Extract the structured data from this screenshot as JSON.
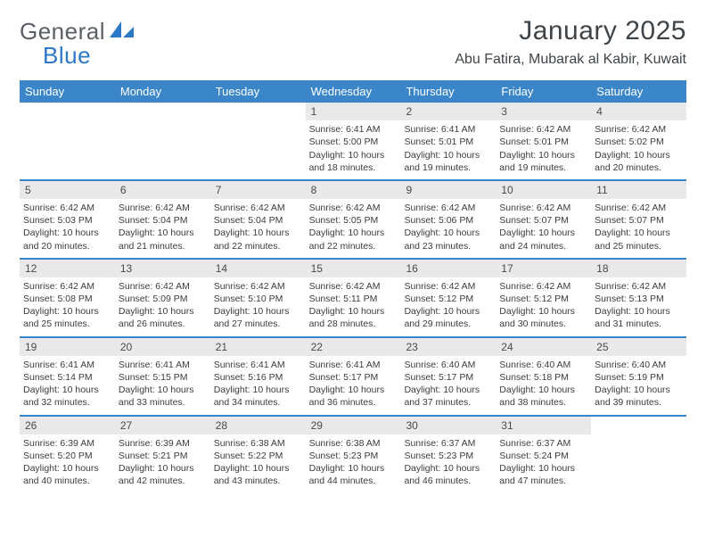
{
  "logo": {
    "word1": "General",
    "word2": "Blue",
    "word1_color": "#5b6066",
    "word2_color": "#2d78c6",
    "icon_color": "#2d78c6"
  },
  "title": "January 2025",
  "location": "Abu Fatira, Mubarak al Kabir, Kuwait",
  "colors": {
    "header_bg": "#3b86c8",
    "header_fg": "#ffffff",
    "daynum_bg": "#e9e9e9",
    "text": "#3c3c3c",
    "separator": "#3b86c8"
  },
  "day_names": [
    "Sunday",
    "Monday",
    "Tuesday",
    "Wednesday",
    "Thursday",
    "Friday",
    "Saturday"
  ],
  "weeks": [
    [
      {
        "n": "",
        "sr": "",
        "ss": "",
        "dl": ""
      },
      {
        "n": "",
        "sr": "",
        "ss": "",
        "dl": ""
      },
      {
        "n": "",
        "sr": "",
        "ss": "",
        "dl": ""
      },
      {
        "n": "1",
        "sr": "Sunrise: 6:41 AM",
        "ss": "Sunset: 5:00 PM",
        "dl": "Daylight: 10 hours and 18 minutes."
      },
      {
        "n": "2",
        "sr": "Sunrise: 6:41 AM",
        "ss": "Sunset: 5:01 PM",
        "dl": "Daylight: 10 hours and 19 minutes."
      },
      {
        "n": "3",
        "sr": "Sunrise: 6:42 AM",
        "ss": "Sunset: 5:01 PM",
        "dl": "Daylight: 10 hours and 19 minutes."
      },
      {
        "n": "4",
        "sr": "Sunrise: 6:42 AM",
        "ss": "Sunset: 5:02 PM",
        "dl": "Daylight: 10 hours and 20 minutes."
      }
    ],
    [
      {
        "n": "5",
        "sr": "Sunrise: 6:42 AM",
        "ss": "Sunset: 5:03 PM",
        "dl": "Daylight: 10 hours and 20 minutes."
      },
      {
        "n": "6",
        "sr": "Sunrise: 6:42 AM",
        "ss": "Sunset: 5:04 PM",
        "dl": "Daylight: 10 hours and 21 minutes."
      },
      {
        "n": "7",
        "sr": "Sunrise: 6:42 AM",
        "ss": "Sunset: 5:04 PM",
        "dl": "Daylight: 10 hours and 22 minutes."
      },
      {
        "n": "8",
        "sr": "Sunrise: 6:42 AM",
        "ss": "Sunset: 5:05 PM",
        "dl": "Daylight: 10 hours and 22 minutes."
      },
      {
        "n": "9",
        "sr": "Sunrise: 6:42 AM",
        "ss": "Sunset: 5:06 PM",
        "dl": "Daylight: 10 hours and 23 minutes."
      },
      {
        "n": "10",
        "sr": "Sunrise: 6:42 AM",
        "ss": "Sunset: 5:07 PM",
        "dl": "Daylight: 10 hours and 24 minutes."
      },
      {
        "n": "11",
        "sr": "Sunrise: 6:42 AM",
        "ss": "Sunset: 5:07 PM",
        "dl": "Daylight: 10 hours and 25 minutes."
      }
    ],
    [
      {
        "n": "12",
        "sr": "Sunrise: 6:42 AM",
        "ss": "Sunset: 5:08 PM",
        "dl": "Daylight: 10 hours and 25 minutes."
      },
      {
        "n": "13",
        "sr": "Sunrise: 6:42 AM",
        "ss": "Sunset: 5:09 PM",
        "dl": "Daylight: 10 hours and 26 minutes."
      },
      {
        "n": "14",
        "sr": "Sunrise: 6:42 AM",
        "ss": "Sunset: 5:10 PM",
        "dl": "Daylight: 10 hours and 27 minutes."
      },
      {
        "n": "15",
        "sr": "Sunrise: 6:42 AM",
        "ss": "Sunset: 5:11 PM",
        "dl": "Daylight: 10 hours and 28 minutes."
      },
      {
        "n": "16",
        "sr": "Sunrise: 6:42 AM",
        "ss": "Sunset: 5:12 PM",
        "dl": "Daylight: 10 hours and 29 minutes."
      },
      {
        "n": "17",
        "sr": "Sunrise: 6:42 AM",
        "ss": "Sunset: 5:12 PM",
        "dl": "Daylight: 10 hours and 30 minutes."
      },
      {
        "n": "18",
        "sr": "Sunrise: 6:42 AM",
        "ss": "Sunset: 5:13 PM",
        "dl": "Daylight: 10 hours and 31 minutes."
      }
    ],
    [
      {
        "n": "19",
        "sr": "Sunrise: 6:41 AM",
        "ss": "Sunset: 5:14 PM",
        "dl": "Daylight: 10 hours and 32 minutes."
      },
      {
        "n": "20",
        "sr": "Sunrise: 6:41 AM",
        "ss": "Sunset: 5:15 PM",
        "dl": "Daylight: 10 hours and 33 minutes."
      },
      {
        "n": "21",
        "sr": "Sunrise: 6:41 AM",
        "ss": "Sunset: 5:16 PM",
        "dl": "Daylight: 10 hours and 34 minutes."
      },
      {
        "n": "22",
        "sr": "Sunrise: 6:41 AM",
        "ss": "Sunset: 5:17 PM",
        "dl": "Daylight: 10 hours and 36 minutes."
      },
      {
        "n": "23",
        "sr": "Sunrise: 6:40 AM",
        "ss": "Sunset: 5:17 PM",
        "dl": "Daylight: 10 hours and 37 minutes."
      },
      {
        "n": "24",
        "sr": "Sunrise: 6:40 AM",
        "ss": "Sunset: 5:18 PM",
        "dl": "Daylight: 10 hours and 38 minutes."
      },
      {
        "n": "25",
        "sr": "Sunrise: 6:40 AM",
        "ss": "Sunset: 5:19 PM",
        "dl": "Daylight: 10 hours and 39 minutes."
      }
    ],
    [
      {
        "n": "26",
        "sr": "Sunrise: 6:39 AM",
        "ss": "Sunset: 5:20 PM",
        "dl": "Daylight: 10 hours and 40 minutes."
      },
      {
        "n": "27",
        "sr": "Sunrise: 6:39 AM",
        "ss": "Sunset: 5:21 PM",
        "dl": "Daylight: 10 hours and 42 minutes."
      },
      {
        "n": "28",
        "sr": "Sunrise: 6:38 AM",
        "ss": "Sunset: 5:22 PM",
        "dl": "Daylight: 10 hours and 43 minutes."
      },
      {
        "n": "29",
        "sr": "Sunrise: 6:38 AM",
        "ss": "Sunset: 5:23 PM",
        "dl": "Daylight: 10 hours and 44 minutes."
      },
      {
        "n": "30",
        "sr": "Sunrise: 6:37 AM",
        "ss": "Sunset: 5:23 PM",
        "dl": "Daylight: 10 hours and 46 minutes."
      },
      {
        "n": "31",
        "sr": "Sunrise: 6:37 AM",
        "ss": "Sunset: 5:24 PM",
        "dl": "Daylight: 10 hours and 47 minutes."
      },
      {
        "n": "",
        "sr": "",
        "ss": "",
        "dl": ""
      }
    ]
  ]
}
